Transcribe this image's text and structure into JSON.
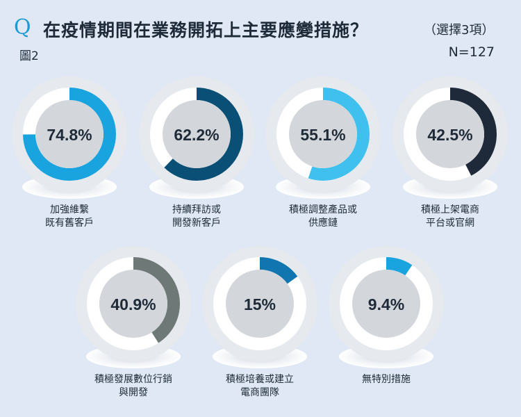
{
  "header": {
    "q_mark": "Q",
    "title": "在疫情期間在業務開拓上主要應變措施？",
    "note": "（選擇3項）",
    "figure_label": "圖2",
    "sample_size": "N=127"
  },
  "chart_data": {
    "type": "donut",
    "title": "在疫情期間在業務開拓上主要應變措施？",
    "subtitle": "（選擇3項）",
    "categories": [
      "加強維繫\n既有舊客戶",
      "持續拜訪或\n開發新客戶",
      "積極調整產品或\n供應鏈",
      "積極上架電商\n平台或官網",
      "積極發展數位行銷\n與開發",
      "積極培養或建立\n電商團隊",
      "無特別措施"
    ],
    "values": [
      74.8,
      62.2,
      55.1,
      42.5,
      40.9,
      15,
      9.4
    ],
    "value_labels": [
      "74.8%",
      "62.2%",
      "55.1%",
      "42.5%",
      "40.9%",
      "15%",
      "9.4%"
    ],
    "unit": "%",
    "colors": [
      "#19a3df",
      "#0a4f75",
      "#3fc0ef",
      "#1e2a3a",
      "#6e7877",
      "#1176b0",
      "#19a3df"
    ]
  }
}
